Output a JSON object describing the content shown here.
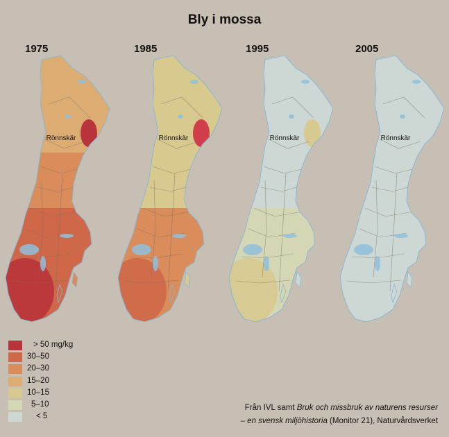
{
  "title": "Bly i mossa",
  "years": [
    "1975",
    "1985",
    "1995",
    "2005"
  ],
  "city_label": "Rönnskär",
  "legend": [
    {
      "label": "> 50 mg/kg",
      "color": "#b8343a"
    },
    {
      "label": "30–50",
      "color": "#cf6848"
    },
    {
      "label": "20–30",
      "color": "#da8c5a"
    },
    {
      "label": "15–20",
      "color": "#ddac72"
    },
    {
      "label": "10–15",
      "color": "#d8c98f"
    },
    {
      "label": "5–10",
      "color": "#d5d7b4"
    },
    {
      "label": "< 5",
      "color": "#cdd7d3"
    }
  ],
  "credit": {
    "line1_prefix": "Från IVL samt ",
    "line1_italic": "Bruk och missbruk av naturens resurser",
    "line2_italic": "– en svensk miljöhistoria",
    "line2_suffix": " (Monitor 21), Naturvårdsverket"
  },
  "maps": [
    {
      "year": "1975",
      "north": "#ddac72",
      "middle": "#da8c5a",
      "south": "#cf6848",
      "hotspot": "#b8343a",
      "southwest": "#b8343a"
    },
    {
      "year": "1985",
      "north": "#d8c98f",
      "middle": "#d8c98f",
      "south": "#da8c5a",
      "hotspot": "#cf3e4a",
      "southwest": "#cf6848"
    },
    {
      "year": "1995",
      "north": "#cdd7d3",
      "middle": "#cdd7d3",
      "south": "#d5d7b4",
      "hotspot": "#d8c98f",
      "southwest": "#d8c98f"
    },
    {
      "year": "2005",
      "north": "#cdd7d3",
      "middle": "#cdd7d3",
      "south": "#cdd7d3",
      "hotspot": "#cdd7d3",
      "southwest": "#cdd7d3"
    }
  ]
}
